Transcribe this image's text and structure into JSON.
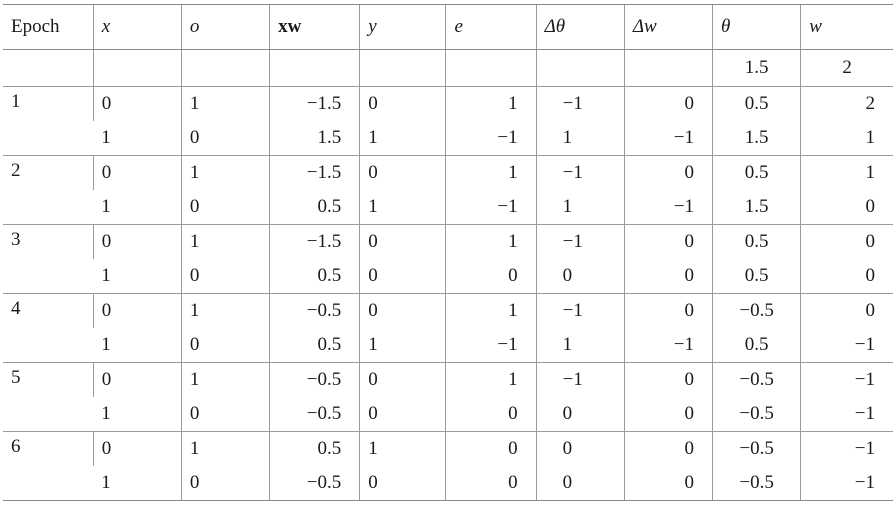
{
  "table": {
    "headers": {
      "epoch": "Epoch",
      "x": "x",
      "o": "o",
      "xw": "xw",
      "y": "y",
      "e": "e",
      "dtheta": "Δθ",
      "dw": "Δw",
      "theta": "θ",
      "w": "w"
    },
    "initial": {
      "theta": "1.5",
      "w": "2"
    },
    "epochs": [
      {
        "epoch": "1",
        "rows": [
          {
            "x": "0",
            "o": "1",
            "xw": "−1.5",
            "y": "0",
            "e": "1",
            "dtheta": "−1",
            "dw": "0",
            "theta": "0.5",
            "w": "2"
          },
          {
            "x": "1",
            "o": "0",
            "xw": "1.5",
            "y": "1",
            "e": "−1",
            "dtheta": "1",
            "dw": "−1",
            "theta": "1.5",
            "w": "1"
          }
        ]
      },
      {
        "epoch": "2",
        "rows": [
          {
            "x": "0",
            "o": "1",
            "xw": "−1.5",
            "y": "0",
            "e": "1",
            "dtheta": "−1",
            "dw": "0",
            "theta": "0.5",
            "w": "1"
          },
          {
            "x": "1",
            "o": "0",
            "xw": "0.5",
            "y": "1",
            "e": "−1",
            "dtheta": "1",
            "dw": "−1",
            "theta": "1.5",
            "w": "0"
          }
        ]
      },
      {
        "epoch": "3",
        "rows": [
          {
            "x": "0",
            "o": "1",
            "xw": "−1.5",
            "y": "0",
            "e": "1",
            "dtheta": "−1",
            "dw": "0",
            "theta": "0.5",
            "w": "0"
          },
          {
            "x": "1",
            "o": "0",
            "xw": "0.5",
            "y": "0",
            "e": "0",
            "dtheta": "0",
            "dw": "0",
            "theta": "0.5",
            "w": "0"
          }
        ]
      },
      {
        "epoch": "4",
        "rows": [
          {
            "x": "0",
            "o": "1",
            "xw": "−0.5",
            "y": "0",
            "e": "1",
            "dtheta": "−1",
            "dw": "0",
            "theta": "−0.5",
            "w": "0"
          },
          {
            "x": "1",
            "o": "0",
            "xw": "0.5",
            "y": "1",
            "e": "−1",
            "dtheta": "1",
            "dw": "−1",
            "theta": "0.5",
            "w": "−1"
          }
        ]
      },
      {
        "epoch": "5",
        "rows": [
          {
            "x": "0",
            "o": "1",
            "xw": "−0.5",
            "y": "0",
            "e": "1",
            "dtheta": "−1",
            "dw": "0",
            "theta": "−0.5",
            "w": "−1"
          },
          {
            "x": "1",
            "o": "0",
            "xw": "−0.5",
            "y": "0",
            "e": "0",
            "dtheta": "0",
            "dw": "0",
            "theta": "−0.5",
            "w": "−1"
          }
        ]
      },
      {
        "epoch": "6",
        "rows": [
          {
            "x": "0",
            "o": "1",
            "xw": "0.5",
            "y": "1",
            "e": "0",
            "dtheta": "0",
            "dw": "0",
            "theta": "−0.5",
            "w": "−1"
          },
          {
            "x": "1",
            "o": "0",
            "xw": "−0.5",
            "y": "0",
            "e": "0",
            "dtheta": "0",
            "dw": "0",
            "theta": "−0.5",
            "w": "−1"
          }
        ]
      }
    ]
  }
}
